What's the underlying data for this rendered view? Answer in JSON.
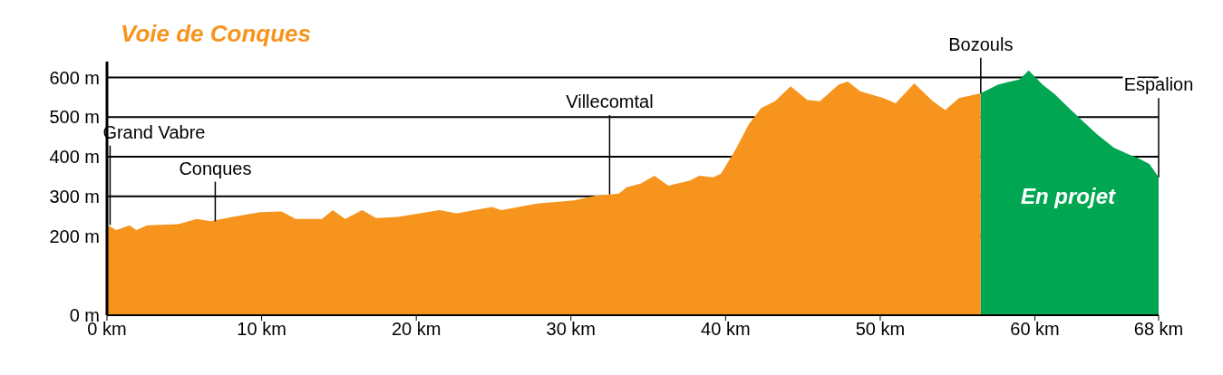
{
  "chart_data": {
    "type": "area",
    "title": "Voie de Conques",
    "xlim": [
      0,
      68
    ],
    "xticks": [
      {
        "value": 0,
        "label": "0 km"
      },
      {
        "value": 10,
        "label": "10 km"
      },
      {
        "value": 20,
        "label": "20 km"
      },
      {
        "value": 30,
        "label": "30 km"
      },
      {
        "value": 40,
        "label": "40 km"
      },
      {
        "value": 50,
        "label": "50 km"
      },
      {
        "value": 60,
        "label": "60 km"
      },
      {
        "value": 68,
        "label": "68 km"
      }
    ],
    "ylim": [
      0,
      640
    ],
    "yticks": [
      {
        "value": 0,
        "label": "0 m"
      },
      {
        "value": 200,
        "label": "200 m"
      },
      {
        "value": 300,
        "label": "300 m"
      },
      {
        "value": 400,
        "label": "400 m"
      },
      {
        "value": 500,
        "label": "500 m"
      },
      {
        "value": 600,
        "label": "600 m"
      }
    ],
    "grid": "y",
    "series": [
      {
        "color": "#f7941d",
        "x": [
          0,
          0.6,
          1.45,
          1.9,
          2.6,
          4.6,
          5.8,
          6.7,
          8.1,
          9.9,
          11.3,
          12.2,
          13.9,
          14.6,
          15.4,
          16.5,
          17.4,
          18.8,
          21.5,
          22.6,
          24.9,
          25.5,
          27.8,
          30.2,
          31.6,
          33.1,
          33.6,
          34.5,
          35.4,
          36.3,
          37.7,
          38.3,
          39.2,
          39.7,
          40.6,
          41.5,
          42.3,
          43.2,
          44.2,
          45.3,
          46.1,
          47.3,
          47.9,
          48.7,
          50.2,
          51,
          52.2,
          53.4,
          54.2,
          55.1,
          56.5
        ],
        "values": [
          228,
          215,
          227,
          215,
          227,
          230,
          243,
          237,
          248,
          260,
          262,
          243,
          243,
          265,
          243,
          265,
          245,
          248,
          265,
          257,
          273,
          265,
          282,
          290,
          302,
          307,
          323,
          332,
          352,
          327,
          340,
          352,
          348,
          357,
          415,
          482,
          523,
          540,
          578,
          543,
          540,
          582,
          590,
          565,
          548,
          535,
          585,
          540,
          518,
          548,
          560
        ]
      },
      {
        "color": "#00a651",
        "x": [
          56.5,
          57.6,
          58.4,
          59,
          59.6,
          60.5,
          61.3,
          62.2,
          63.1,
          64,
          65.1,
          66,
          66.6,
          67.4,
          68
        ],
        "values": [
          560,
          582,
          590,
          595,
          618,
          582,
          557,
          523,
          490,
          457,
          423,
          407,
          398,
          382,
          348
        ]
      }
    ],
    "annotations": [
      {
        "text": "Grand Vabre",
        "x": 0.2,
        "y": 228
      },
      {
        "text": "Conques",
        "x": 7,
        "y": 237
      },
      {
        "text": "Villecomtal",
        "x": 32.5,
        "y": 305
      },
      {
        "text": "Bozouls",
        "x": 56.5,
        "y": 560
      },
      {
        "text": "Espalion",
        "x": 68,
        "y": 348
      },
      "En projet"
    ]
  }
}
